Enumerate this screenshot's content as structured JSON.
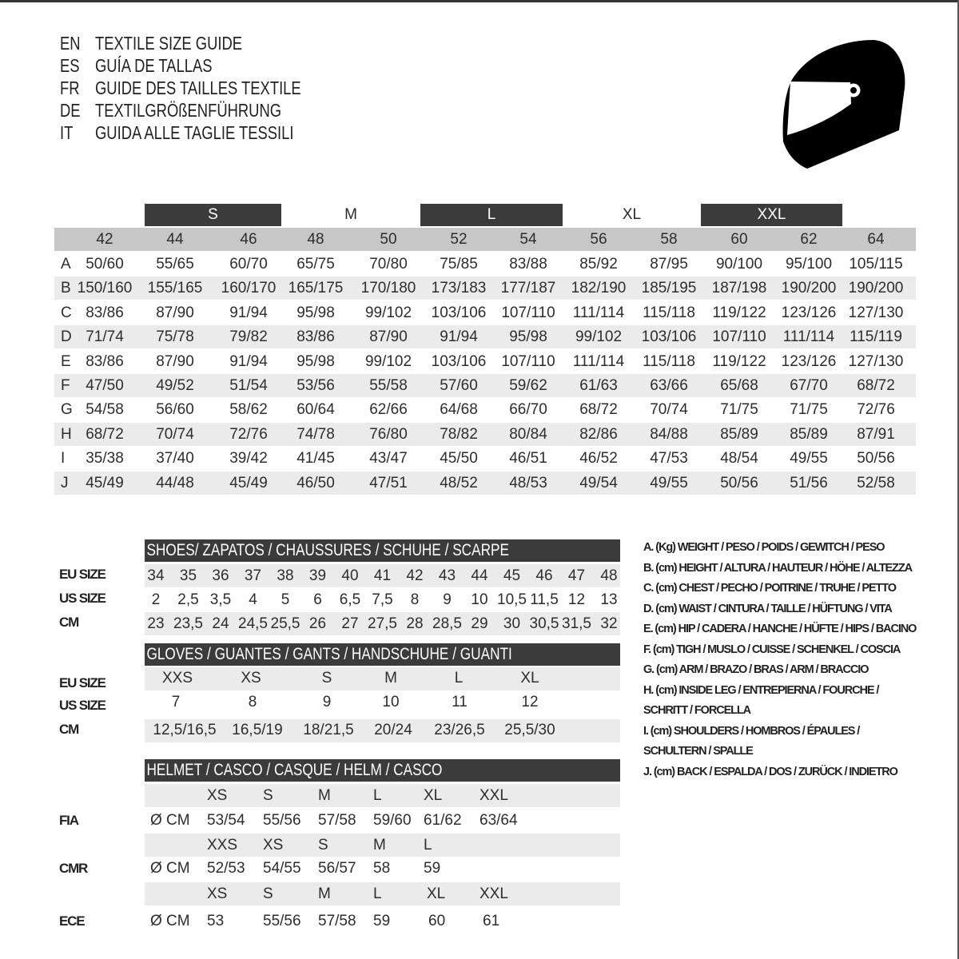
{
  "header": {
    "lines": [
      {
        "code": "EN",
        "text": "TEXTILE SIZE GUIDE"
      },
      {
        "code": "ES",
        "text": "GUÍA DE TALLAS"
      },
      {
        "code": "FR",
        "text": "GUIDE DES TAILLES TEXTILE"
      },
      {
        "code": "DE",
        "text": "TEXTILGRÖßENFÜHRUNG"
      },
      {
        "code": "IT",
        "text": "GUIDA ALLE TAGLIE TESSILI"
      }
    ],
    "icon": "helmet-icon"
  },
  "textile": {
    "size_groups": [
      {
        "label": "S",
        "style": "dark"
      },
      {
        "label": "M",
        "style": "light"
      },
      {
        "label": "L",
        "style": "dark"
      },
      {
        "label": "XL",
        "style": "light"
      },
      {
        "label": "XXL",
        "style": "dark"
      }
    ],
    "sizes": [
      "42",
      "44",
      "46",
      "48",
      "50",
      "52",
      "54",
      "56",
      "58",
      "60",
      "62",
      "64"
    ],
    "rows": [
      {
        "letter": "A",
        "values": [
          "50/60",
          "55/65",
          "60/70",
          "65/75",
          "70/80",
          "75/85",
          "83/88",
          "85/92",
          "87/95",
          "90/100",
          "95/100",
          "105/115"
        ]
      },
      {
        "letter": "B",
        "values": [
          "150/160",
          "155/165",
          "160/170",
          "165/175",
          "170/180",
          "173/183",
          "177/187",
          "182/190",
          "185/195",
          "187/198",
          "190/200",
          "190/200"
        ]
      },
      {
        "letter": "C",
        "values": [
          "83/86",
          "87/90",
          "91/94",
          "95/98",
          "99/102",
          "103/106",
          "107/110",
          "111/114",
          "115/118",
          "119/122",
          "123/126",
          "127/130"
        ]
      },
      {
        "letter": "D",
        "values": [
          "71/74",
          "75/78",
          "79/82",
          "83/86",
          "87/90",
          "91/94",
          "95/98",
          "99/102",
          "103/106",
          "107/110",
          "111/114",
          "115/119"
        ]
      },
      {
        "letter": "E",
        "values": [
          "83/86",
          "87/90",
          "91/94",
          "95/98",
          "99/102",
          "103/106",
          "107/110",
          "111/114",
          "115/118",
          "119/122",
          "123/126",
          "127/130"
        ]
      },
      {
        "letter": "F",
        "values": [
          "47/50",
          "49/52",
          "51/54",
          "53/56",
          "55/58",
          "57/60",
          "59/62",
          "61/63",
          "63/66",
          "65/68",
          "67/70",
          "68/72"
        ]
      },
      {
        "letter": "G",
        "values": [
          "54/58",
          "56/60",
          "58/62",
          "60/64",
          "62/66",
          "64/68",
          "66/70",
          "68/72",
          "70/74",
          "71/75",
          "71/75",
          "72/76"
        ]
      },
      {
        "letter": "H",
        "values": [
          "68/72",
          "70/74",
          "72/76",
          "74/78",
          "76/80",
          "78/82",
          "80/84",
          "82/86",
          "84/88",
          "85/89",
          "85/89",
          "87/91"
        ]
      },
      {
        "letter": "I",
        "values": [
          "35/38",
          "37/40",
          "39/42",
          "41/45",
          "43/47",
          "45/50",
          "46/51",
          "46/52",
          "47/53",
          "48/54",
          "49/55",
          "50/56"
        ]
      },
      {
        "letter": "J",
        "values": [
          "45/49",
          "44/48",
          "45/49",
          "46/50",
          "47/51",
          "48/52",
          "48/53",
          "49/54",
          "49/55",
          "50/56",
          "51/56",
          "52/58"
        ]
      }
    ]
  },
  "shoes": {
    "title": "SHOES/ ZAPATOS / CHAUSSURES / SCHUHE / SCARPE",
    "rows": [
      {
        "label": "EU SIZE",
        "values": [
          "34",
          "35",
          "36",
          "37",
          "38",
          "39",
          "40",
          "41",
          "42",
          "43",
          "44",
          "45",
          "46",
          "47",
          "48"
        ]
      },
      {
        "label": "US SIZE",
        "values": [
          "2",
          "2,5",
          "3,5",
          "4",
          "5",
          "6",
          "6,5",
          "7,5",
          "8",
          "9",
          "10",
          "10,5",
          "11,5",
          "12",
          "13"
        ]
      },
      {
        "label": "CM",
        "values": [
          "23",
          "23,5",
          "24",
          "24,5",
          "25,5",
          "26",
          "27",
          "27,5",
          "28",
          "28,5",
          "29",
          "30",
          "30,5",
          "31,5",
          "32"
        ]
      }
    ]
  },
  "gloves": {
    "title": "GLOVES / GUANTES / GANTS / HANDSCHUHE / GUANTI",
    "rows": [
      {
        "label": "EU SIZE",
        "values": [
          "XXS",
          "XS",
          "S",
          "M",
          "L",
          "XL"
        ]
      },
      {
        "label": "US SIZE",
        "values": [
          "7",
          "8",
          "9",
          "10",
          "11",
          "12"
        ]
      },
      {
        "label": "CM",
        "values": [
          "12,5/16,5",
          "16,5/19",
          "18/21,5",
          "20/24",
          "23/26,5",
          "25,5/30"
        ]
      }
    ]
  },
  "helmet": {
    "title": "HELMET / CASCO / CASQUE / HELM / CASCO",
    "standards": [
      {
        "name": "FIA",
        "unit": "Ø CM",
        "sizes": [
          "XS",
          "S",
          "M",
          "L",
          "XL",
          "XXL"
        ],
        "values": [
          "53/54",
          "55/56",
          "57/58",
          "59/60",
          "61/62",
          "63/64"
        ]
      },
      {
        "name": "CMR",
        "unit": "Ø CM",
        "sizes": [
          "XXS",
          "XS",
          "S",
          "M",
          "L"
        ],
        "values": [
          "52/53",
          "54/55",
          "56/57",
          "58",
          "59"
        ]
      },
      {
        "name": "ECE",
        "unit": "Ø CM",
        "sizes": [
          "XS",
          "S",
          "M",
          "L",
          "XL",
          "XXL"
        ],
        "values": [
          "53",
          "55/56",
          "57/58",
          "59",
          "60",
          "61"
        ]
      }
    ]
  },
  "legend": {
    "lines": [
      "A. (Kg) WEIGHT / PESO / POIDS / GEWITCH / PESO",
      "B. (cm) HEIGHT / ALTURA / HAUTEUR / HÖHE / ALTEZZA",
      "C. (cm) CHEST / PECHO / POITRINE / TRUHE / PETTO",
      "D. (cm) WAIST / CINTURA / TAILLE / HÜFTUNG / VITA",
      "E. (cm) HIP / CADERA / HANCHE / HÜFTE / HIPS /  BACINO",
      "F.  (cm) TIGH / MUSLO / CUISSE / SCHENKEL / COSCIA",
      "G. (cm) ARM  / BRAZO / BRAS / ARM / BRACCIO",
      "H. (cm) INSIDE LEG / ENTREPIERNA / FOURCHE /",
      "SCHRITT / FORCELLA",
      "I.  (cm) SHOULDERS / HOMBROS / ÉPAULES /",
      "SCHULTERN / SPALLE",
      "J. (cm) BACK / ESPALDA / DOS / ZURÜCK / INDIETRO"
    ]
  },
  "colors": {
    "dark_bar": "#3b3b3b",
    "grey_header": "#c7c7c7",
    "row_band": "#ebebeb",
    "text": "#2d2d2d"
  }
}
